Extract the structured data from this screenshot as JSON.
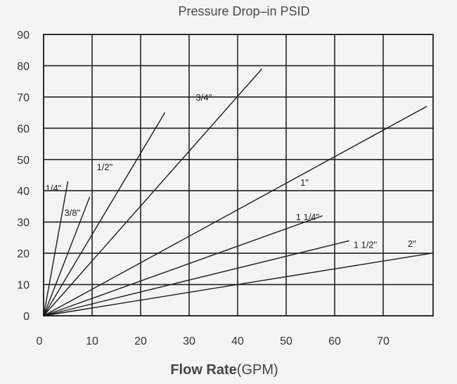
{
  "chart_data": {
    "type": "line",
    "title": "Pressure Drop–in PSID",
    "xlabel": "Flow Rate",
    "xlabel_unit": "(GPM)",
    "ylabel": "",
    "xlim": [
      0,
      80
    ],
    "ylim": [
      0,
      90
    ],
    "x_ticks": [
      "0",
      "10",
      "20",
      "30",
      "40",
      "50",
      "60",
      "70"
    ],
    "y_ticks": [
      "0",
      "10",
      "20",
      "30",
      "40",
      "50",
      "60",
      "70",
      "80",
      "90"
    ],
    "grid": true,
    "series": [
      {
        "name": "1/4\"",
        "x": [
          0,
          5
        ],
        "y": [
          0,
          43
        ]
      },
      {
        "name": "3/8\"",
        "x": [
          0,
          9.5
        ],
        "y": [
          0,
          38
        ]
      },
      {
        "name": "1/2\"",
        "x": [
          0,
          25
        ],
        "y": [
          0,
          65
        ]
      },
      {
        "name": "3/4\"",
        "x": [
          0,
          45
        ],
        "y": [
          0,
          79
        ]
      },
      {
        "name": "1\"",
        "x": [
          0,
          79
        ],
        "y": [
          0,
          67
        ]
      },
      {
        "name": "1 1/4\"",
        "x": [
          0,
          57.5
        ],
        "y": [
          0,
          32
        ]
      },
      {
        "name": "1 1/2\"",
        "x": [
          0,
          63
        ],
        "y": [
          0,
          24
        ]
      },
      {
        "name": "2\"",
        "x": [
          0,
          80
        ],
        "y": [
          0,
          20
        ]
      }
    ]
  }
}
